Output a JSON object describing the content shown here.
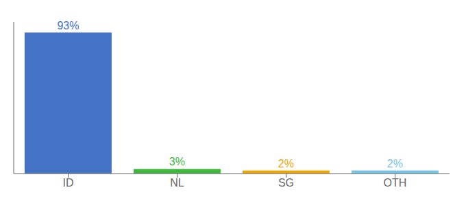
{
  "chart_data": {
    "type": "bar",
    "categories": [
      "ID",
      "NL",
      "SG",
      "OTH"
    ],
    "values": [
      93,
      3,
      2,
      2
    ],
    "value_labels": [
      "93%",
      "3%",
      "2%",
      "2%"
    ],
    "colors": [
      "#4472c4",
      "#3db83d",
      "#f0a500",
      "#74c4e8"
    ],
    "ylim": [
      0,
      100
    ],
    "data_labels": true,
    "tick_labels": "x",
    "grid": false
  }
}
